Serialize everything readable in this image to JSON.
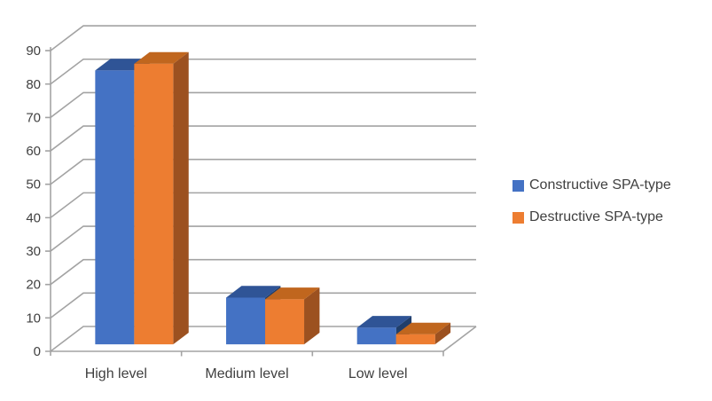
{
  "chart_data": {
    "type": "bar",
    "subtype": "3d-clustered-column",
    "title": "",
    "xlabel": "",
    "ylabel": "",
    "categories": [
      "High level",
      "Medium level",
      "Low level"
    ],
    "series": [
      {
        "name": "Constructive SPA-type",
        "values": [
          82,
          14,
          5
        ],
        "color": "#4472C4",
        "color_top": "#2F5496",
        "color_side": "#203E6B"
      },
      {
        "name": "Destructive SPA-type",
        "values": [
          84,
          13.5,
          3
        ],
        "color": "#ED7D31",
        "color_top": "#C0661E",
        "color_side": "#9C5120"
      }
    ],
    "ylim": [
      0,
      90
    ],
    "yticks": [
      0,
      10,
      20,
      30,
      40,
      50,
      60,
      70,
      80,
      90
    ],
    "grid": true,
    "legend_position": "right",
    "gridline_color": "#A3A3A3",
    "label_color": "#404040",
    "background_color": "#FFFFFF"
  },
  "legend": {
    "items": [
      {
        "label": "Constructive SPA-type",
        "color": "#4472C4"
      },
      {
        "label": "Destructive SPA-type",
        "color": "#ED7D31"
      }
    ]
  }
}
